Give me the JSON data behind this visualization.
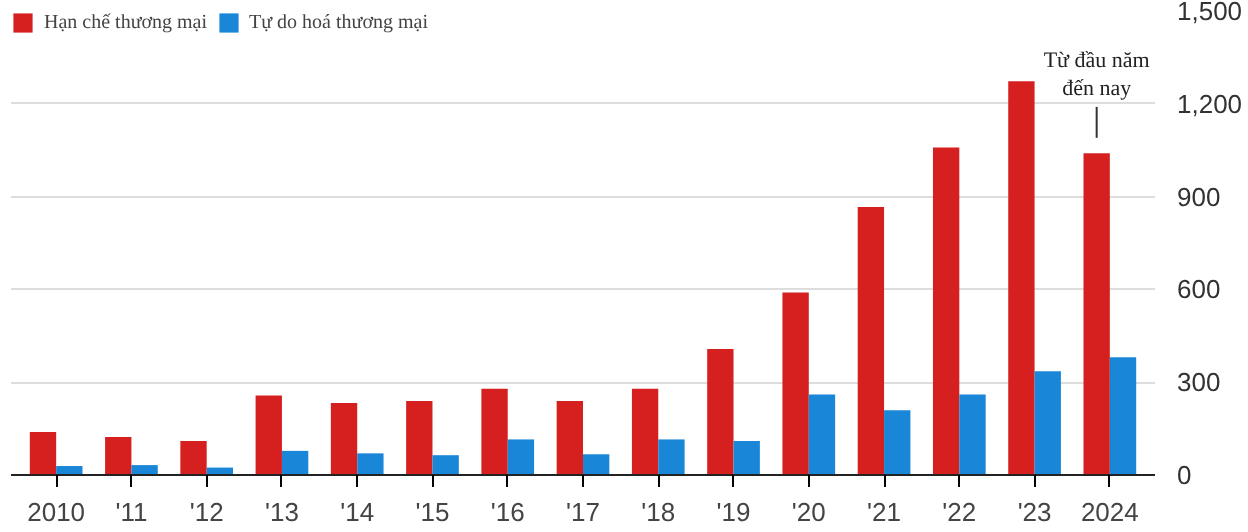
{
  "chart_data": {
    "type": "bar",
    "categories": [
      "2010",
      "'11",
      "'12",
      "'13",
      "'14",
      "'15",
      "'16",
      "'17",
      "'18",
      "'19",
      "'20",
      "'21",
      "'22",
      "'23",
      "2024"
    ],
    "series": [
      {
        "name": "Hạn chế thương mại",
        "color": "#d62020",
        "values": [
          139,
          123,
          110,
          257,
          233,
          239,
          279,
          239,
          279,
          407,
          590,
          866,
          1059,
          1273,
          1040
        ]
      },
      {
        "name": "Tự do hoá thương mại",
        "color": "#1a86d8",
        "values": [
          29,
          32,
          24,
          78,
          70,
          64,
          115,
          67,
          115,
          110,
          260,
          209,
          260,
          335,
          381
        ]
      }
    ],
    "ylim": [
      0,
      1500
    ],
    "yticks": [
      0,
      300,
      600,
      900,
      {
        "value": 1200,
        "label": "1,200"
      },
      {
        "value": 1500,
        "label": "1,500"
      }
    ],
    "grid": "y",
    "legend": "top left",
    "annotations": [
      {
        "text": "Từ đầu năm\nđến nay",
        "x": "2024",
        "y": 1040
      }
    ]
  }
}
